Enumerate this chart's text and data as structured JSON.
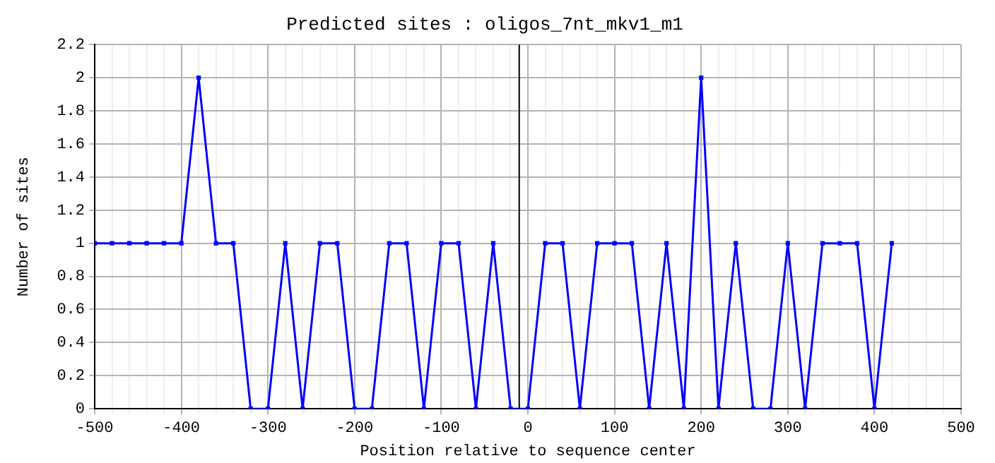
{
  "chart_data": {
    "type": "line",
    "title": "Predicted sites : oligos_7nt_mkv1_m1",
    "xlabel": "Position relative to sequence center",
    "ylabel": "Number of sites",
    "x": [
      -500,
      -480,
      -460,
      -440,
      -420,
      -400,
      -380,
      -360,
      -340,
      -320,
      -300,
      -280,
      -260,
      -240,
      -220,
      -200,
      -180,
      -160,
      -140,
      -120,
      -100,
      -80,
      -60,
      -40,
      -20,
      0,
      20,
      40,
      60,
      80,
      100,
      120,
      140,
      160,
      180,
      200,
      220,
      240,
      260,
      280,
      300,
      320,
      340,
      360,
      380,
      400,
      420
    ],
    "series": [
      {
        "color": "#0000ff",
        "values": [
          1,
          1,
          1,
          1,
          1,
          1,
          2,
          1,
          1,
          0,
          0,
          1,
          0,
          1,
          1,
          0,
          0,
          1,
          1,
          0,
          1,
          1,
          0,
          1,
          0,
          0,
          1,
          1,
          0,
          1,
          1,
          1,
          0,
          1,
          0,
          2,
          0,
          1,
          0,
          0,
          1,
          0,
          1,
          1,
          1,
          0,
          1
        ]
      }
    ],
    "xlim": [
      -500,
      500
    ],
    "xticks": [
      -500,
      {
        "value": -480,
        "label": null
      },
      {
        "value": -460,
        "label": null
      },
      {
        "value": -440,
        "label": null
      },
      {
        "value": -420,
        "label": null
      },
      -400,
      {
        "value": -380,
        "label": null
      },
      {
        "value": -360,
        "label": null
      },
      {
        "value": -340,
        "label": null
      },
      {
        "value": -320,
        "label": null
      },
      -300,
      {
        "value": -280,
        "label": null
      },
      {
        "value": -260,
        "label": null
      },
      {
        "value": -240,
        "label": null
      },
      {
        "value": -220,
        "label": null
      },
      -200,
      {
        "value": -180,
        "label": null
      },
      {
        "value": -160,
        "label": null
      },
      {
        "value": -140,
        "label": null
      },
      {
        "value": -120,
        "label": null
      },
      -100,
      {
        "value": -80,
        "label": null
      },
      {
        "value": -60,
        "label": null
      },
      {
        "value": -40,
        "label": null
      },
      {
        "value": -20,
        "label": null
      },
      0,
      {
        "value": 20,
        "label": null
      },
      {
        "value": 40,
        "label": null
      },
      {
        "value": 60,
        "label": null
      },
      {
        "value": 80,
        "label": null
      },
      100,
      {
        "value": 120,
        "label": null
      },
      {
        "value": 140,
        "label": null
      },
      {
        "value": 160,
        "label": null
      },
      {
        "value": 180,
        "label": null
      },
      200,
      {
        "value": 220,
        "label": null
      },
      {
        "value": 240,
        "label": null
      },
      {
        "value": 260,
        "label": null
      },
      {
        "value": 280,
        "label": null
      },
      300,
      {
        "value": 320,
        "label": null
      },
      {
        "value": 340,
        "label": null
      },
      {
        "value": 360,
        "label": null
      },
      {
        "value": 380,
        "label": null
      },
      400,
      {
        "value": 420,
        "label": null
      },
      {
        "value": 440,
        "label": null
      },
      {
        "value": 460,
        "label": null
      },
      {
        "value": 480,
        "label": null
      },
      500
    ],
    "ylim": [
      0,
      2.2
    ],
    "yticks": [
      0,
      0.2,
      0.4,
      0.6,
      0.8,
      1,
      1.2,
      1.4,
      1.6,
      1.8,
      2,
      2.2
    ],
    "ref_lines": [
      {
        "axis": "x",
        "value": -10,
        "color": "#000000"
      }
    ],
    "grid": true,
    "marker": "square",
    "line_style": "solid",
    "legend": false
  }
}
